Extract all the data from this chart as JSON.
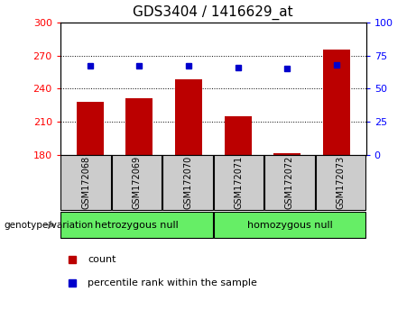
{
  "title": "GDS3404 / 1416629_at",
  "categories": [
    "GSM172068",
    "GSM172069",
    "GSM172070",
    "GSM172071",
    "GSM172072",
    "GSM172073"
  ],
  "bar_values": [
    228,
    231,
    248,
    215,
    181.5,
    275
  ],
  "percentile_values": [
    67,
    67,
    67,
    66,
    65,
    68
  ],
  "ymin": 180,
  "ymax": 300,
  "yticks_left": [
    180,
    210,
    240,
    270,
    300
  ],
  "yticks_right": [
    0,
    25,
    50,
    75,
    100
  ],
  "bar_color": "#bb0000",
  "dot_color": "#0000cc",
  "group1_label": "hetrozygous null",
  "group2_label": "homozygous null",
  "genotype_label": "genotype/variation",
  "legend_bar_label": "count",
  "legend_dot_label": "percentile rank within the sample",
  "group_bg_color": "#66ee66",
  "tick_label_bg": "#cccccc",
  "title_fontsize": 11,
  "tick_fontsize": 8,
  "legend_fontsize": 8
}
